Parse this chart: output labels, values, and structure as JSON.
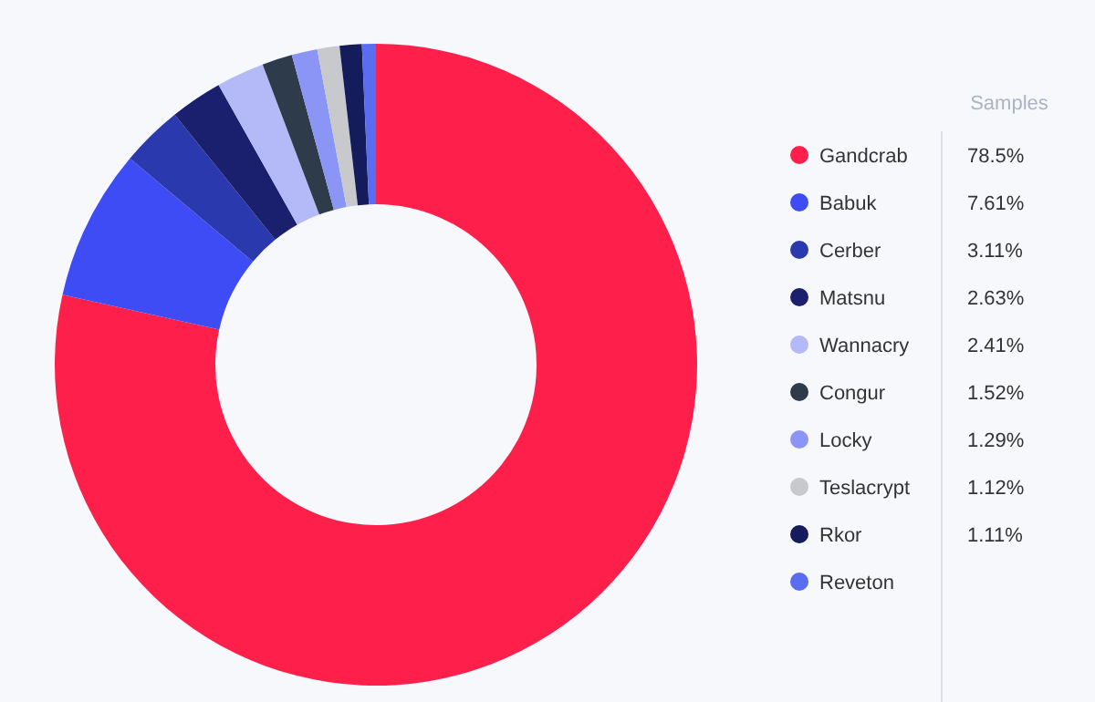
{
  "chart_data": {
    "type": "donut",
    "legend_title": "Samples",
    "legend": "right",
    "categories": [
      "Gandcrab",
      "Babuk",
      "Cerber",
      "Matsnu",
      "Wannacry",
      "Congur",
      "Locky",
      "Teslacrypt",
      "Rkor",
      "Reveton"
    ],
    "values": [
      78.5,
      7.61,
      3.11,
      2.63,
      2.41,
      1.52,
      1.29,
      1.12,
      1.11,
      0.7
    ],
    "value_labels": [
      "78.5%",
      "7.61%",
      "3.11%",
      "2.63%",
      "2.41%",
      "1.52%",
      "1.29%",
      "1.12%",
      "1.11%",
      null
    ],
    "colors": [
      "#ff1f4b",
      "#3d4cf5",
      "#2a3aae",
      "#1a1f6e",
      "#b4b9f7",
      "#2e3b4a",
      "#8a95f5",
      "#c8c9cc",
      "#141c5c",
      "#5a6cf0"
    ]
  }
}
